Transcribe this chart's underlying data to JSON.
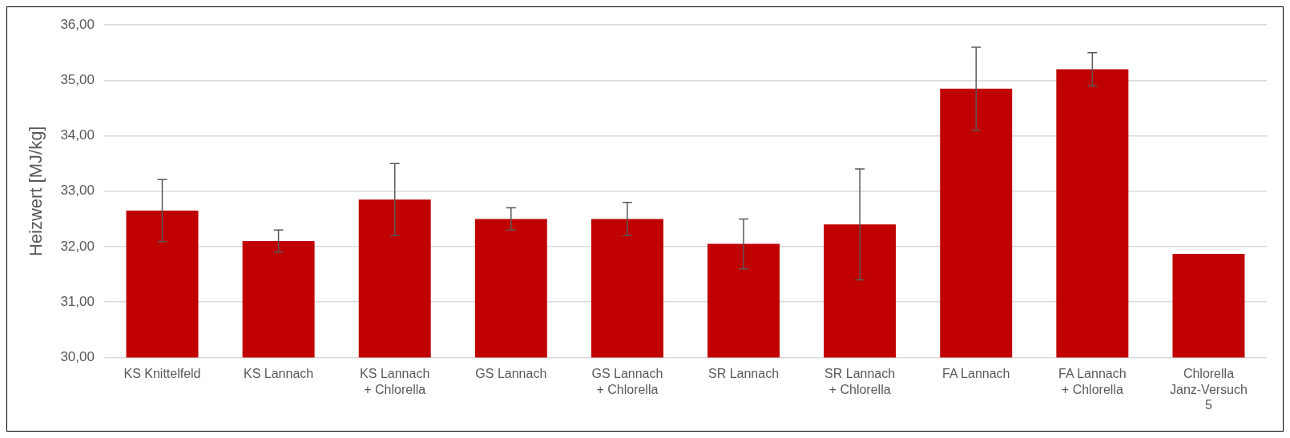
{
  "chart_data": {
    "type": "bar",
    "ylabel": "Heizwert [MJ/kg]",
    "categories": [
      "KS Knittelfeld",
      "KS Lannach",
      "KS Lannach\n+ Chlorella",
      "GS Lannach",
      "GS Lannach\n+ Chlorella",
      "SR Lannach",
      "SR Lannach\n+ Chlorella",
      "FA Lannach",
      "FA Lannach\n+ Chlorella",
      "Chlorella\nJanz-Versuch\n5"
    ],
    "values": [
      32.65,
      32.1,
      32.85,
      32.5,
      32.5,
      32.05,
      32.4,
      34.85,
      35.2,
      31.87
    ],
    "errors": [
      0.56,
      0.2,
      0.65,
      0.2,
      0.3,
      0.45,
      1.0,
      0.75,
      0.3,
      null
    ],
    "color": "#c00000",
    "ylim": [
      30,
      36
    ],
    "yticks": [
      {
        "value": 30,
        "label": "30,00"
      },
      {
        "value": 31,
        "label": "31,00"
      },
      {
        "value": 32,
        "label": "32,00"
      },
      {
        "value": 33,
        "label": "33,00"
      },
      {
        "value": 34,
        "label": "34,00"
      },
      {
        "value": 35,
        "label": "35,00"
      },
      {
        "value": 36,
        "label": "36,00"
      }
    ],
    "grid": "y",
    "legend": false
  }
}
